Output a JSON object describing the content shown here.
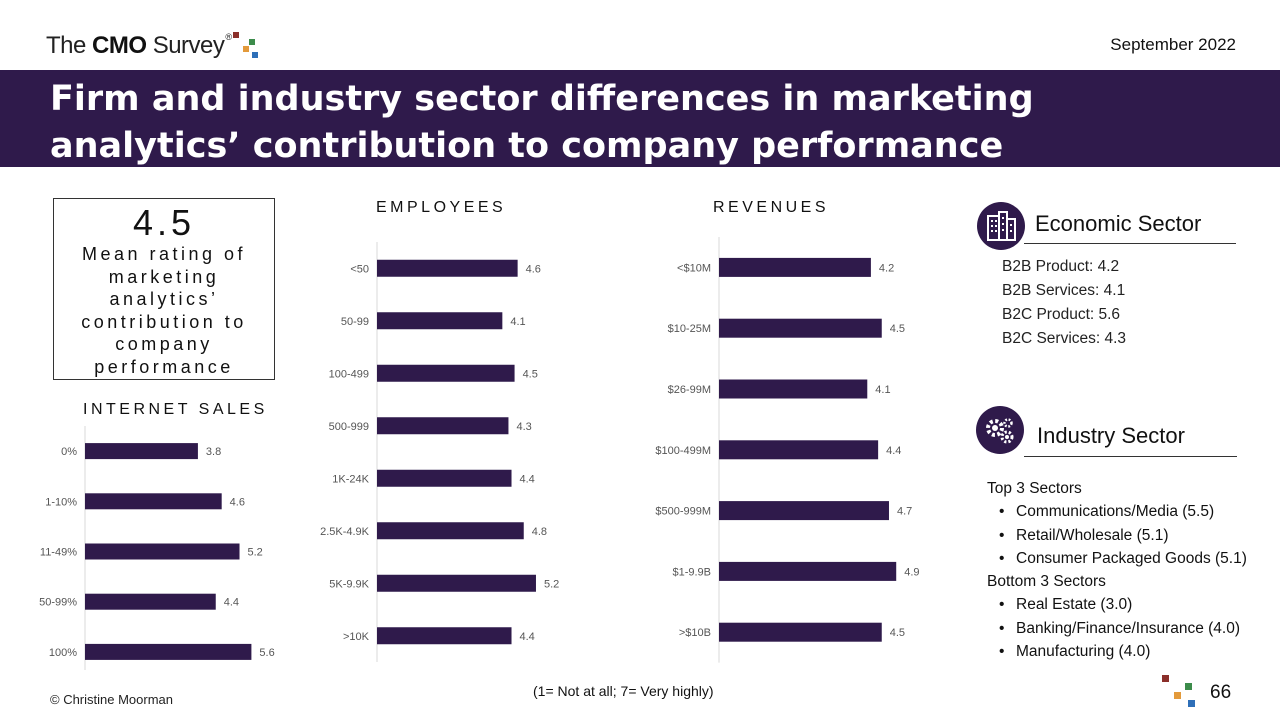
{
  "header": {
    "logo_text_pre": "The ",
    "logo_text_bold": "CMO",
    "logo_text_post": " Survey",
    "logo_reg": "®",
    "date": "September 2022",
    "title": "Firm and industry sector differences in marketing analytics’ contribution to company performance"
  },
  "mean_box": {
    "value": "4.5",
    "description": "Mean rating of marketing analytics’ contribution to company performance"
  },
  "chart_data": [
    {
      "type": "bar",
      "orientation": "horizontal",
      "title": "INTERNET SALES",
      "categories": [
        "0%",
        "1-10%",
        "11-49%",
        "50-99%",
        "100%"
      ],
      "values": [
        3.8,
        4.6,
        5.2,
        4.4,
        5.6
      ],
      "data_labels": [
        "3.8",
        "4.6",
        "5.2",
        "4.4",
        "5.6"
      ],
      "xlim": [
        0,
        7
      ],
      "color": "#2f1a4b"
    },
    {
      "type": "bar",
      "orientation": "horizontal",
      "title": "EMPLOYEES",
      "categories": [
        "<50",
        "50-99",
        "100-499",
        "500-999",
        "1K-24K",
        "2.5K-4.9K",
        "5K-9.9K",
        ">10K"
      ],
      "values": [
        4.6,
        4.1,
        4.5,
        4.3,
        4.4,
        4.8,
        5.2,
        4.4
      ],
      "data_labels": [
        "4.6",
        "4.1",
        "4.5",
        "4.3",
        "4.4",
        "4.8",
        "5.2",
        "4.4"
      ],
      "xlim": [
        0,
        7
      ],
      "color": "#2f1a4b"
    },
    {
      "type": "bar",
      "orientation": "horizontal",
      "title": "REVENUES",
      "categories": [
        "<$10M",
        "$10-25M",
        "$26-99M",
        "$100-499M",
        "$500-999M",
        "$1-9.9B",
        ">$10B"
      ],
      "values": [
        4.2,
        4.5,
        4.1,
        4.4,
        4.7,
        4.9,
        4.5
      ],
      "data_labels": [
        "4.2",
        "4.5",
        "4.1",
        "4.4",
        "4.7",
        "4.9",
        "4.5"
      ],
      "xlim": [
        0,
        6
      ],
      "color": "#2f1a4b"
    }
  ],
  "economic_sector": {
    "title": "Economic Sector",
    "icon": "buildings-icon",
    "items": [
      "B2B Product: 4.2",
      "B2B Services: 4.1",
      "B2C Product: 5.6",
      "B2C Services: 4.3"
    ]
  },
  "industry_sector": {
    "title": "Industry Sector",
    "icon": "gears-icon",
    "top_heading": "Top 3 Sectors",
    "top": [
      "Communications/Media (5.5)",
      "Retail/Wholesale (5.1)",
      "Consumer Packaged Goods (5.1)"
    ],
    "bottom_heading": "Bottom 3 Sectors",
    "bottom": [
      "Real Estate (3.0)",
      "Banking/Finance/Insurance (4.0)",
      "Manufacturing (4.0)"
    ]
  },
  "footer": {
    "scale_note": "(1= Not at all; 7= Very highly)",
    "copyright": "© Christine Moorman",
    "page_number": "66"
  },
  "colors": {
    "brand_purple": "#2f1a4b",
    "logo_red": "#8b2f2a",
    "logo_green": "#3c8c4b",
    "logo_orange": "#e39a3b",
    "logo_blue": "#2e6fb8"
  }
}
